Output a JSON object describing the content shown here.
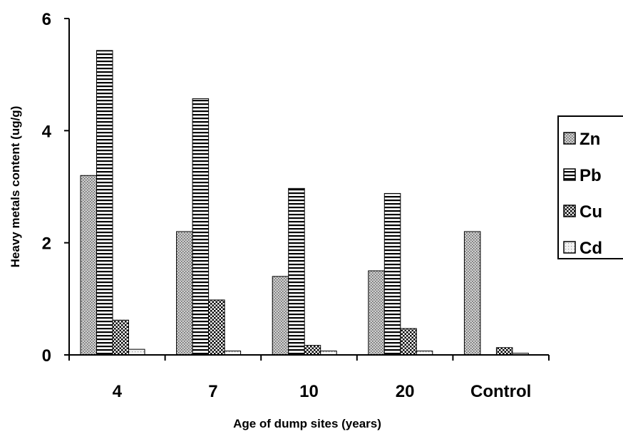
{
  "chart_data": {
    "type": "bar",
    "title": "",
    "xlabel": "Age of dump sites (years)",
    "ylabel": "Heavy metals content (ug/g)",
    "categories": [
      "4",
      "7",
      "10",
      "20",
      "Control"
    ],
    "ylim": [
      0,
      6
    ],
    "yticks": [
      "0",
      "2",
      "4",
      "6"
    ],
    "legend_position": "right",
    "grid": false,
    "series": [
      {
        "name": "Zn",
        "pattern": "dots",
        "values": [
          3.2,
          2.2,
          1.4,
          1.5,
          2.2
        ]
      },
      {
        "name": "Pb",
        "pattern": "horizontal-lines",
        "values": [
          5.43,
          4.57,
          2.97,
          2.88,
          0.0
        ]
      },
      {
        "name": "Cu",
        "pattern": "checker",
        "values": [
          0.62,
          0.98,
          0.17,
          0.47,
          0.13
        ]
      },
      {
        "name": "Cd",
        "pattern": "light-dots",
        "values": [
          0.1,
          0.07,
          0.07,
          0.07,
          0.03
        ]
      }
    ]
  }
}
